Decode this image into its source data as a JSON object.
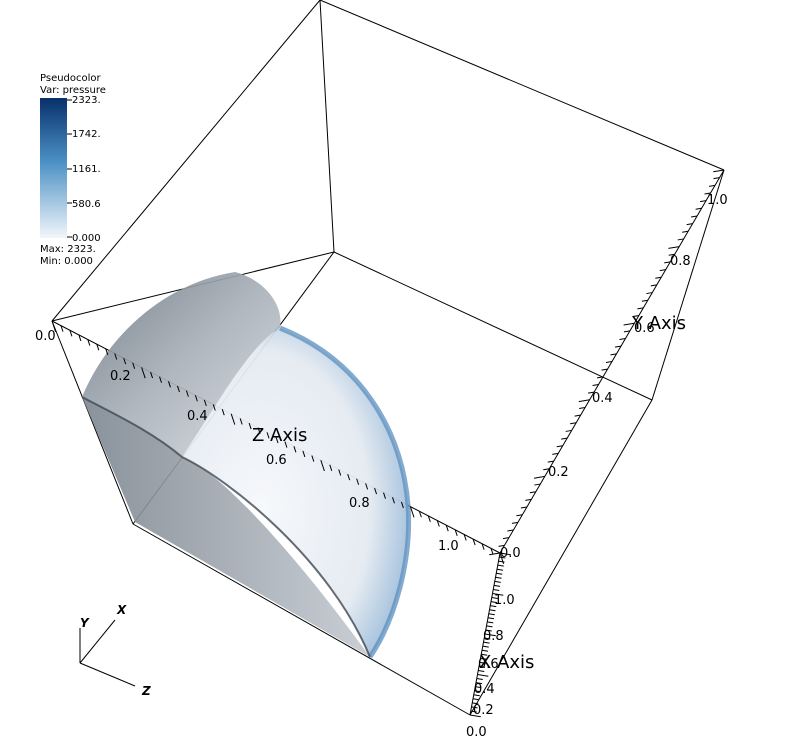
{
  "legend": {
    "title": "Pseudocolor",
    "var_label": "Var: pressure",
    "ticks": [
      "2323.",
      "1742.",
      "1161.",
      "580.6",
      "0.000"
    ],
    "max_label": "Max:  2323.",
    "min_label": "Min:  0.000",
    "gradient_top": "#08306b",
    "gradient_mid": "#4a90c4",
    "gradient_bottom": "#f2f6fb"
  },
  "axes": {
    "z": {
      "title": "Z Axis",
      "ticks": [
        "0.0",
        "0.2",
        "0.4",
        "0.6",
        "0.8",
        "1.0"
      ]
    },
    "y": {
      "title": "Y Axis",
      "ticks": [
        "0.0",
        "0.2",
        "0.4",
        "0.6",
        "0.8",
        "1.0"
      ]
    },
    "x": {
      "title": "X Axis",
      "ticks": [
        "0.0",
        "0.2",
        "0.4",
        "0.6",
        "0.8",
        "1.0"
      ]
    }
  },
  "triad": {
    "x": "X",
    "y": "Y",
    "z": "Z"
  },
  "colors": {
    "shell_gray": "#9aa3ad",
    "shell_light": "#e7edf3",
    "shell_blue": "#5b8fbf",
    "box_line": "#000000"
  }
}
